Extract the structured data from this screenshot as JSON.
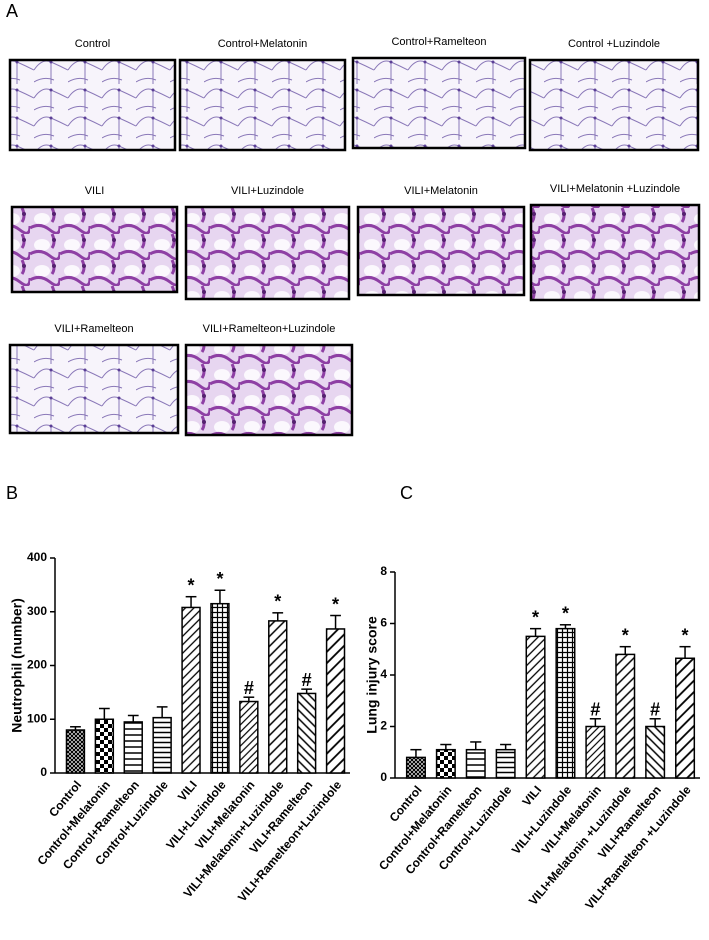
{
  "panel_labels": [
    "A",
    "B",
    "C"
  ],
  "histology": {
    "labels": [
      "Control",
      "Control+Melatonin",
      "Control+Ramelteon",
      "Control +Luzindole",
      "VILI",
      "VILI+Luzindole",
      "VILI+Melatonin",
      "VILI+Melatonin +Luzindole",
      "VILI+Ramelteon",
      "VILI+Ramelteon+Luzindole"
    ]
  },
  "chart_data": [
    {
      "type": "bar",
      "ylabel": "Neutrophil (number)",
      "categories": [
        "Control",
        "Control+Melatonin",
        "Control+Ramelteon",
        "Control+Luzindole",
        "VILI",
        "VILI+Luzindole",
        "VILI+Melatonin",
        "VILI+Melatonin+Luzindole",
        "VILI+Ramelteon",
        "VILI+Ramelteon+Luzindole"
      ],
      "values": [
        80,
        100,
        95,
        103,
        308,
        315,
        133,
        283,
        148,
        268
      ],
      "errors": [
        6,
        20,
        12,
        20,
        20,
        25,
        8,
        15,
        8,
        25
      ],
      "annotations": [
        {
          "index": 4,
          "text": "*"
        },
        {
          "index": 5,
          "text": "*"
        },
        {
          "index": 6,
          "text": "#"
        },
        {
          "index": 7,
          "text": "*"
        },
        {
          "index": 8,
          "text": "#"
        },
        {
          "index": 9,
          "text": "*"
        }
      ],
      "ylim": [
        0,
        400
      ],
      "yticks": [
        0,
        100,
        200,
        300,
        400
      ],
      "color": "#000000"
    },
    {
      "type": "bar",
      "ylabel": "Lung injury score",
      "categories": [
        "Control",
        "Control+Melatonin",
        "Control+Ramelteon",
        "Control+Luzindole",
        "VILI",
        "VILI+Luzindole",
        "VILI+Melatonin",
        "VILI+Melatonin +Luzindole",
        "VILI+Ramelteon",
        "VILI+Ramelteon +Luzindole"
      ],
      "values": [
        0.8,
        1.1,
        1.1,
        1.1,
        5.5,
        5.8,
        2.0,
        4.8,
        2.0,
        4.65
      ],
      "errors": [
        0.3,
        0.2,
        0.3,
        0.2,
        0.3,
        0.15,
        0.3,
        0.3,
        0.3,
        0.45
      ],
      "annotations": [
        {
          "index": 4,
          "text": "*"
        },
        {
          "index": 5,
          "text": "*"
        },
        {
          "index": 6,
          "text": "#"
        },
        {
          "index": 7,
          "text": "*"
        },
        {
          "index": 8,
          "text": "#"
        },
        {
          "index": 9,
          "text": "*"
        }
      ],
      "ylim": [
        0,
        8
      ],
      "yticks": [
        0,
        2,
        4,
        6,
        8
      ],
      "color": "#000000"
    }
  ]
}
